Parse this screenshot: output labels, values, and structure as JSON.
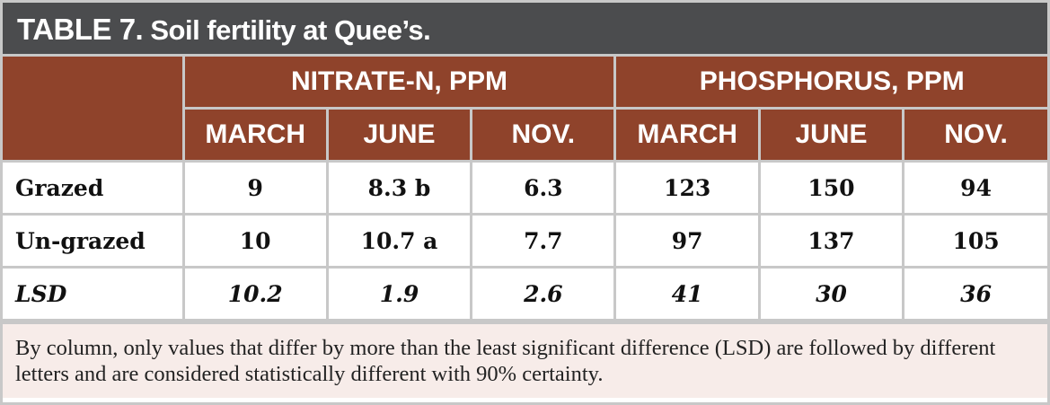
{
  "title_bold": "TABLE 7.",
  "title_rest": " Soil fertility at Quee’s.",
  "groups": [
    "NITRATE-N, PPM",
    "PHOSPHORUS, PPM"
  ],
  "months": [
    "MARCH",
    "JUNE",
    "NOV.",
    "MARCH",
    "JUNE",
    "NOV."
  ],
  "rows": [
    {
      "label": "Grazed",
      "values": [
        "9",
        "8.3 b",
        "6.3",
        "123",
        "150",
        "94"
      ]
    },
    {
      "label": "Un-grazed",
      "values": [
        "10",
        "10.7 a",
        "7.7",
        "97",
        "137",
        "105"
      ]
    },
    {
      "label": "LSD",
      "values": [
        "10.2",
        "1.9",
        "2.6",
        "41",
        "30",
        "36"
      ]
    }
  ],
  "note": "By column, only values that differ by more than the least significant difference (LSD) are followed by different letters and are considered statistically different with 90% certainty.",
  "colors": {
    "header": "#8f432b",
    "title_bar": "#4b4c4e",
    "note_bg": "#f7ece9"
  }
}
